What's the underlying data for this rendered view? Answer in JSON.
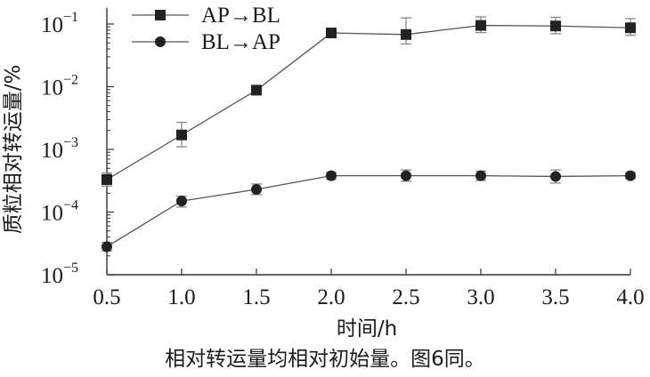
{
  "chart_data": {
    "type": "line",
    "x": [
      0.5,
      1.0,
      1.5,
      2.0,
      2.5,
      3.0,
      3.5,
      4.0
    ],
    "x_ticks": [
      "0.5",
      "1.0",
      "1.5",
      "2.0",
      "2.5",
      "3.0",
      "3.5",
      "4.0"
    ],
    "xlim": [
      0.5,
      4.0
    ],
    "xlabel": "时间/h",
    "ylabel": "质粒相对转运量/%",
    "y_scale": "log",
    "ylim": [
      1e-05,
      0.1
    ],
    "y_ticks": [
      {
        "base": "10",
        "exp": "−1"
      },
      {
        "base": "10",
        "exp": "−2"
      },
      {
        "base": "10",
        "exp": "−3"
      },
      {
        "base": "10",
        "exp": "−4"
      },
      {
        "base": "10",
        "exp": "−5"
      }
    ],
    "y_tick_values": [
      0.1,
      0.01,
      0.001,
      0.0001,
      1e-05
    ],
    "legend_position": "top-left",
    "series": [
      {
        "name": "AP→BL",
        "marker": "square",
        "values": [
          0.00033,
          0.0017,
          0.0088,
          0.072,
          0.068,
          0.095,
          0.093,
          0.087
        ],
        "error_low": [
          0.00026,
          0.0011,
          0.0078,
          0.065,
          0.048,
          0.073,
          0.07,
          0.066
        ],
        "error_high": [
          0.00042,
          0.0027,
          0.0098,
          0.08,
          0.125,
          0.13,
          0.128,
          0.122
        ]
      },
      {
        "name": "BL→AP",
        "marker": "circle",
        "values": [
          2.8e-05,
          0.00015,
          0.00023,
          0.00038,
          0.00038,
          0.00038,
          0.00037,
          0.00038
        ],
        "error_low": [
          2.4e-05,
          0.00012,
          0.00019,
          0.00033,
          0.00031,
          0.00032,
          0.00029,
          0.00034
        ],
        "error_high": [
          3.3e-05,
          0.00018,
          0.00028,
          0.00043,
          0.00047,
          0.00045,
          0.00047,
          0.00043
        ]
      }
    ]
  },
  "caption": "相对转运量均相对初始量。图6同。",
  "colors": {
    "axis": "#333333",
    "line": "#555555",
    "marker": "#222222",
    "errorbar": "#8a8a8a"
  }
}
